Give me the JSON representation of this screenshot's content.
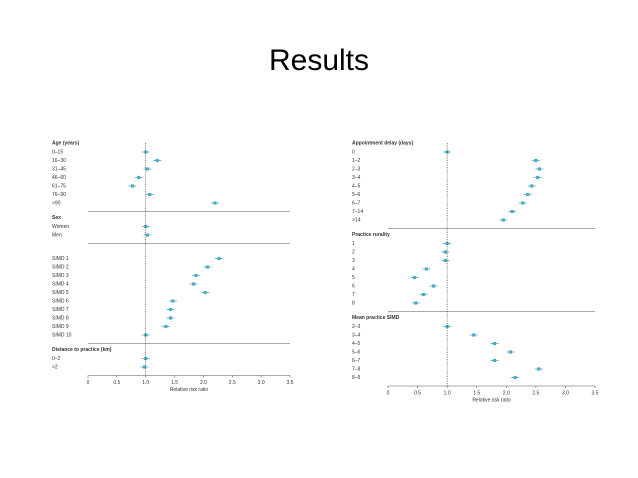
{
  "title": "Results",
  "chart_data": [
    {
      "type": "forest",
      "color": "#4bacc6",
      "xlabel": "Relative risk ratio",
      "reference": 1,
      "xlim": [
        0,
        3.5
      ],
      "xticks": [
        0,
        0.5,
        {
          "value": 1,
          "label": "1.0"
        },
        1.5,
        {
          "value": 2,
          "label": "2.0"
        },
        2.5,
        {
          "value": 3,
          "label": "3.0"
        },
        3.5
      ],
      "groups": [
        {
          "title": "Age (years)",
          "categories": [
            "0–15",
            "16–30",
            "31–45",
            "46–60",
            "61–75",
            "76–90",
            ">90"
          ],
          "values": [
            1.0,
            1.2,
            1.03,
            0.88,
            0.77,
            1.07,
            2.2
          ]
        },
        {
          "title": "Sex",
          "categories": [
            "Women",
            "Men"
          ],
          "values": [
            1.0,
            1.03
          ]
        },
        {
          "categories": [
            "SIMD 1",
            "SIMD 2",
            "SIMD 3",
            "SIMD 4",
            "SIMD 5",
            "SIMD 6",
            "SIMD 7",
            "SIMD 8",
            "SIMD 9",
            "SIMD 10"
          ],
          "values": [
            2.27,
            2.07,
            1.87,
            1.83,
            2.03,
            1.47,
            1.43,
            1.43,
            1.35,
            1.0
          ]
        },
        {
          "title": "Distance to practice (km)",
          "categories": [
            "0–2",
            ">2"
          ],
          "values": [
            1.0,
            0.98
          ]
        }
      ]
    },
    {
      "type": "forest",
      "color": "#4bacc6",
      "xlabel": "Relative risk ratio",
      "reference": 1,
      "xlim": [
        0,
        3.5
      ],
      "xticks": [
        0,
        0.5,
        {
          "value": 1,
          "label": "1.0"
        },
        1.5,
        {
          "value": 2,
          "label": "2.0"
        },
        2.5,
        {
          "value": 3,
          "label": "3.0"
        },
        3.5
      ],
      "groups": [
        {
          "title": "Appointment delay (days)",
          "categories": [
            "0",
            "1–2",
            "2–3",
            "3–4",
            "4–5",
            "5–6",
            "6–7",
            "7–14",
            ">14"
          ],
          "values": [
            1.0,
            2.5,
            2.56,
            2.53,
            2.43,
            2.36,
            2.28,
            2.1,
            1.95
          ]
        },
        {
          "title": "Practice rurality",
          "categories": [
            "1",
            "2",
            "3",
            "4",
            "5",
            "6",
            "7",
            "8"
          ],
          "values": [
            1.0,
            0.97,
            0.97,
            0.65,
            0.45,
            0.77,
            0.6,
            0.47
          ]
        },
        {
          "title": "Mean practice SIMD",
          "categories": [
            "2–3",
            "3–4",
            "4–5",
            "5–6",
            "6–7",
            "7–8",
            "8–9"
          ],
          "values": [
            1.0,
            1.45,
            1.8,
            2.07,
            1.8,
            2.55,
            2.15
          ]
        }
      ]
    }
  ]
}
